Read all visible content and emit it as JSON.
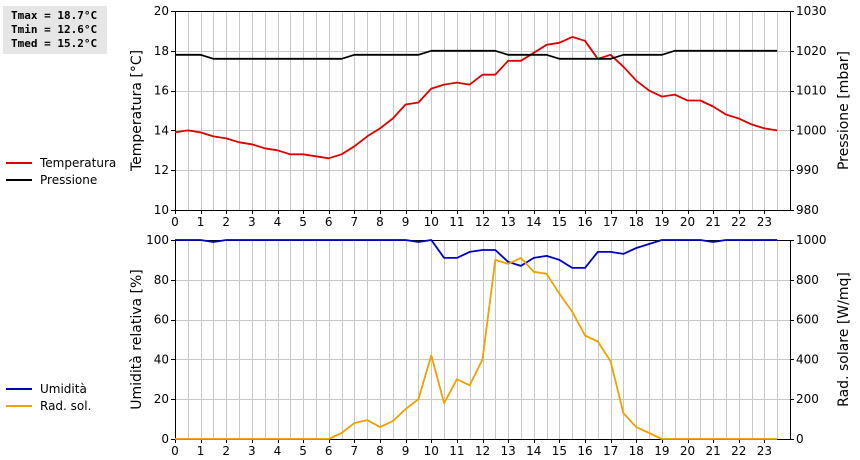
{
  "stats": {
    "tmax": "Tmax = 18.7°C",
    "tmin": "Tmin = 12.6°C",
    "tmed": "Tmed = 15.2°C"
  },
  "colors": {
    "temperature": "#dd0000",
    "pressure": "#000000",
    "humidity": "#0000bb",
    "radiation": "#f0a000",
    "grid": "#c8c8c8"
  },
  "chart_data": [
    {
      "type": "line",
      "x_ticks": [
        "0",
        "1",
        "2",
        "3",
        "4",
        "5",
        "6",
        "7",
        "8",
        "9",
        "10",
        "11",
        "12",
        "13",
        "14",
        "15",
        "16",
        "17",
        "18",
        "19",
        "20",
        "21",
        "22",
        "23"
      ],
      "xlim": [
        0,
        24
      ],
      "ylabel": "Temperatura [°C]",
      "ylim": [
        10,
        20
      ],
      "y_ticks": [
        "10",
        "12",
        "14",
        "16",
        "18",
        "20"
      ],
      "y2label": "Pressione [mbar]",
      "y2lim": [
        980,
        1030
      ],
      "y2_ticks": [
        "980",
        "990",
        "1000",
        "1010",
        "1020",
        "1030"
      ],
      "grid": true,
      "legend_position": "left",
      "series": [
        {
          "name": "Temperatura",
          "axis": "left",
          "x": [
            0,
            0.5,
            1,
            1.5,
            2,
            2.5,
            3,
            3.5,
            4,
            4.5,
            5,
            5.5,
            6,
            6.5,
            7,
            7.5,
            8,
            8.5,
            9,
            9.5,
            10,
            10.5,
            11,
            11.5,
            12,
            12.5,
            13,
            13.5,
            14,
            14.5,
            15,
            15.5,
            16,
            16.5,
            17,
            17.5,
            18,
            18.5,
            19,
            19.5,
            20,
            20.5,
            21,
            21.5,
            22,
            22.5,
            23,
            23.5
          ],
          "values": [
            13.9,
            14.0,
            13.9,
            13.7,
            13.6,
            13.4,
            13.3,
            13.1,
            13.0,
            12.8,
            12.8,
            12.7,
            12.6,
            12.8,
            13.2,
            13.7,
            14.1,
            14.6,
            15.3,
            15.4,
            16.1,
            16.3,
            16.4,
            16.3,
            16.8,
            16.8,
            17.5,
            17.5,
            17.9,
            18.3,
            18.4,
            18.7,
            18.5,
            17.6,
            17.8,
            17.2,
            16.5,
            16.0,
            15.7,
            15.8,
            15.5,
            15.5,
            15.2,
            14.8,
            14.6,
            14.3,
            14.1,
            14.0
          ]
        },
        {
          "name": "Pressione",
          "axis": "right",
          "x": [
            0,
            1,
            1.5,
            6,
            6.5,
            7,
            9.5,
            10,
            12.5,
            13,
            14.5,
            15,
            17,
            17.5,
            19,
            19.5,
            23.5
          ],
          "values": [
            1019,
            1019,
            1018,
            1018,
            1018,
            1019,
            1019,
            1020,
            1020,
            1019,
            1019,
            1018,
            1018,
            1019,
            1019,
            1020,
            1020
          ]
        }
      ]
    },
    {
      "type": "line",
      "x_ticks": [
        "0",
        "1",
        "2",
        "3",
        "4",
        "5",
        "6",
        "7",
        "8",
        "9",
        "10",
        "11",
        "12",
        "13",
        "14",
        "15",
        "16",
        "17",
        "18",
        "19",
        "20",
        "21",
        "22",
        "23"
      ],
      "xlim": [
        0,
        24
      ],
      "ylabel": "Umidità relativa [%]",
      "ylim": [
        0,
        100
      ],
      "y_ticks": [
        "0",
        "20",
        "40",
        "60",
        "80",
        "100"
      ],
      "y2label": "Rad. solare [W/mq]",
      "y2lim": [
        0,
        1000
      ],
      "y2_ticks": [
        "0",
        "200",
        "400",
        "600",
        "800",
        "1000"
      ],
      "grid": true,
      "legend_position": "left",
      "series": [
        {
          "name": "Umidità",
          "axis": "left",
          "x": [
            0,
            1,
            1.5,
            2,
            9,
            9.5,
            10,
            10.5,
            11,
            11.5,
            12,
            12.5,
            13,
            13.5,
            14,
            14.5,
            15,
            15.5,
            16,
            16.5,
            17,
            17.5,
            18,
            18.5,
            19,
            20.5,
            21,
            21.5,
            23.5
          ],
          "values": [
            100,
            100,
            99,
            100,
            100,
            99,
            100,
            91,
            91,
            94,
            95,
            95,
            89,
            87,
            91,
            92,
            90,
            86,
            86,
            94,
            94,
            93,
            96,
            98,
            100,
            100,
            99,
            100,
            100
          ]
        },
        {
          "name": "Rad. sol.",
          "axis": "right",
          "x": [
            0,
            6,
            6.5,
            7,
            7.5,
            8,
            8.5,
            9,
            9.5,
            10,
            10.5,
            11,
            11.5,
            12,
            12.5,
            13,
            13.5,
            14,
            14.5,
            15,
            15.5,
            16,
            16.5,
            17,
            17.5,
            18,
            18.5,
            19,
            23.5
          ],
          "values": [
            0,
            0,
            30,
            80,
            95,
            60,
            90,
            150,
            200,
            420,
            180,
            300,
            270,
            400,
            900,
            880,
            910,
            840,
            830,
            730,
            640,
            520,
            490,
            390,
            130,
            60,
            30,
            0,
            0
          ]
        }
      ]
    }
  ]
}
